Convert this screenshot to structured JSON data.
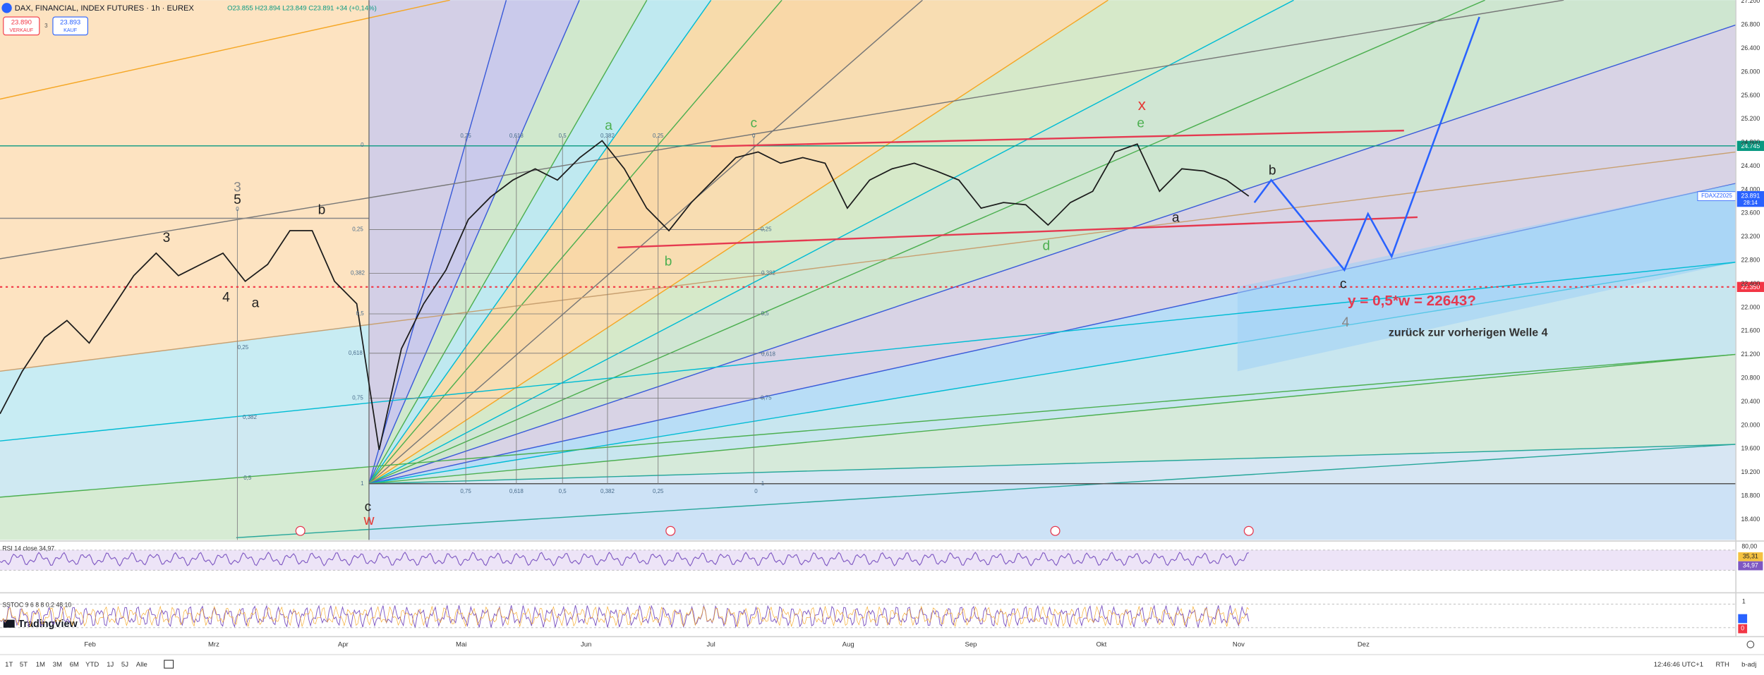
{
  "header": {
    "symbol": "DAX, FINANCIAL, INDEX FUTURES · 1h · EUREX",
    "ohlc": "O23.855 H23.894 L23.849 C23.891 +34 (+0,14%)",
    "sell_price": "23.890",
    "sell_label": "VERKAUF",
    "spread": "3",
    "buy_price": "23.893",
    "buy_label": "KAUF"
  },
  "price_axis": [
    {
      "value": 27200,
      "label": "27.200"
    },
    {
      "value": 26800,
      "label": "26.800"
    },
    {
      "value": 26400,
      "label": "26.400"
    },
    {
      "value": 26000,
      "label": "26.000"
    },
    {
      "value": 25600,
      "label": "25.600"
    },
    {
      "value": 25200,
      "label": "25.200"
    },
    {
      "value": 24800,
      "label": "24.800"
    },
    {
      "value": 24400,
      "label": "24.400"
    },
    {
      "value": 24000,
      "label": "24.000"
    },
    {
      "value": 23600,
      "label": "23.600"
    },
    {
      "value": 23200,
      "label": "23.200"
    },
    {
      "value": 22800,
      "label": "22.800"
    },
    {
      "value": 22400,
      "label": "22.400"
    },
    {
      "value": 22000,
      "label": "22.000"
    },
    {
      "value": 21600,
      "label": "21.600"
    },
    {
      "value": 21200,
      "label": "21.200"
    },
    {
      "value": 20800,
      "label": "20.800"
    },
    {
      "value": 20400,
      "label": "20.400"
    },
    {
      "value": 20000,
      "label": "20.000"
    },
    {
      "value": 19600,
      "label": "19.600"
    },
    {
      "value": 19200,
      "label": "19.200"
    },
    {
      "value": 18800,
      "label": "18.800"
    },
    {
      "value": 18400,
      "label": "18.400"
    }
  ],
  "price_line": {
    "values": [
      20194,
      20919,
      21492,
      21779,
      21397,
      21969,
      22542,
      22924,
      22542,
      22733,
      22924,
      22447,
      22733,
      23306,
      23306,
      22447,
      22065,
      19583,
      21301,
      22065,
      22638,
      23497,
      23879,
      24165,
      24356,
      24165,
      24547,
      24833,
      24356,
      23688,
      23306,
      23783,
      24165,
      24547,
      24643,
      24452,
      24547,
      24452,
      23688,
      24165,
      24356,
      24452,
      24318,
      24165,
      23688,
      23783,
      23745,
      23401,
      23783,
      23974,
      24643,
      24776,
      23974,
      24356,
      24318,
      24165,
      23891
    ]
  },
  "levels": [
    {
      "value": 24745,
      "label": "24.745",
      "color": "#089981"
    },
    {
      "value": 22350,
      "label": "22.350",
      "color": "#f23645"
    }
  ],
  "last_price": {
    "value": 23891,
    "label": "23.891",
    "countdown": "28:14",
    "contract": "FDAXZ2025"
  },
  "annotations": [
    {
      "text": "3",
      "color": "#222222"
    },
    {
      "text": "3",
      "color": "#888888"
    },
    {
      "text": "5",
      "color": "#222222"
    },
    {
      "text": "4",
      "color": "#222222"
    },
    {
      "text": "a",
      "color": "#222222"
    },
    {
      "text": "b",
      "color": "#222222"
    },
    {
      "text": "c",
      "color": "#222222"
    },
    {
      "text": "w",
      "color": "#e53935"
    },
    {
      "text": "a",
      "color": "#4caf50"
    },
    {
      "text": "b",
      "color": "#4caf50"
    },
    {
      "text": "c",
      "color": "#4caf50"
    },
    {
      "text": "x",
      "color": "#e53935"
    },
    {
      "text": "e",
      "color": "#4caf50"
    },
    {
      "text": "d",
      "color": "#4caf50"
    },
    {
      "text": "a",
      "color": "#222222"
    },
    {
      "text": "b",
      "color": "#222222"
    },
    {
      "text": "c",
      "color": "#222222"
    },
    {
      "text": "4",
      "color": "#888888"
    },
    {
      "text": "y = 0,5*w = 22643?",
      "color": "#e53950"
    },
    {
      "text": "zurück zur vorherigen Welle 4",
      "color": "#333333"
    }
  ],
  "fib_labels": [
    "0,75",
    "0,618",
    "0,5",
    "0,382",
    "0,25",
    "0",
    "0,75",
    "0,618",
    "0,5",
    "0,382",
    "0,25",
    "0",
    "0",
    "0,25",
    "0,382",
    "0,5",
    "0,618",
    "0,75",
    "1",
    "0,25",
    "0,382",
    "0,5",
    "0,618",
    "0,75",
    "1",
    "0",
    "0,25",
    "0,382",
    "0,5"
  ],
  "rsi": {
    "title": "RSI 14 close 34,97",
    "axis_top": "80,00",
    "value_a": "35,31",
    "value_b": "34,97"
  },
  "stoch": {
    "title": "SSTOC 9 6 8 8 0,2 48 10",
    "axis_top": "1",
    "axis_bottom": "0"
  },
  "logo": "TradingView",
  "time_axis": [
    "Feb",
    "Mrz",
    "Apr",
    "Mai",
    "Jun",
    "Jul",
    "Aug",
    "Sep",
    "Okt",
    "Nov",
    "Dez"
  ],
  "toolbar": {
    "ranges": [
      "1T",
      "5T",
      "1M",
      "3M",
      "6M",
      "YTD",
      "1J",
      "5J",
      "Alle"
    ],
    "clock": "12:46:46 UTC+1",
    "session": "RTH",
    "adjust": "b-adj"
  }
}
